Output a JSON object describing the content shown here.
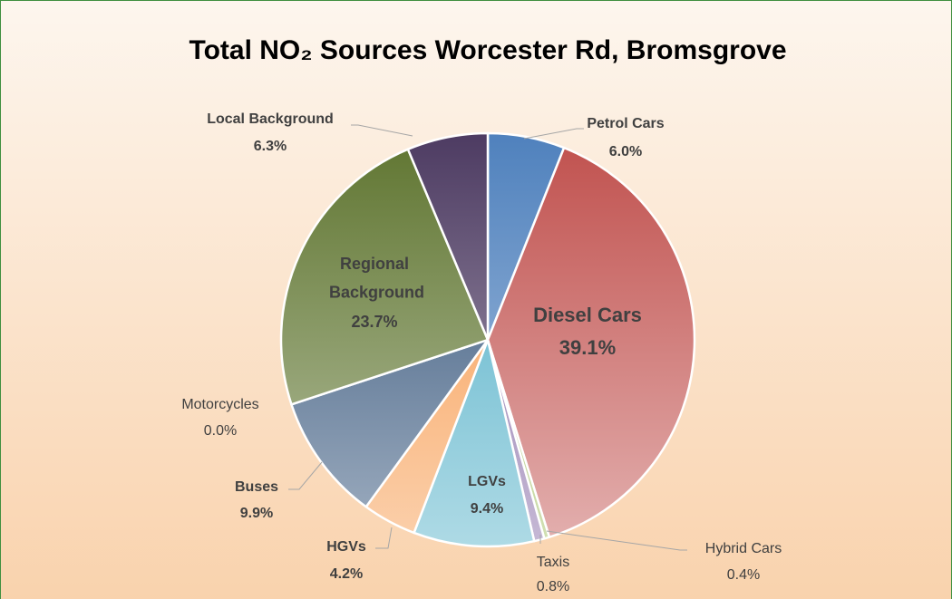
{
  "chart_data": {
    "type": "pie",
    "title": "Total NO₂ Sources Worcester Rd, Bromsgrove",
    "categories": [
      "Petrol Cars",
      "Diesel Cars",
      "Hybrid Cars",
      "Taxis",
      "LGVs",
      "HGVs",
      "Buses",
      "Motorcycles",
      "Regional Background",
      "Local Background"
    ],
    "values": [
      6.0,
      39.1,
      0.4,
      0.8,
      9.4,
      4.2,
      9.9,
      0.0,
      23.7,
      6.3
    ],
    "value_labels": [
      "6.0%",
      "39.1%",
      "0.4%",
      "0.8%",
      "9.4%",
      "4.2%",
      "9.9%",
      "0.0%",
      "23.7%",
      "6.3%"
    ],
    "colors": [
      "#4f81bd",
      "#c0504d",
      "#9bbb59",
      "#8064a2",
      "#4bacc6",
      "#f79646",
      "#2c4d75",
      "#772c2a",
      "#5f7530",
      "#4d3b62"
    ]
  }
}
